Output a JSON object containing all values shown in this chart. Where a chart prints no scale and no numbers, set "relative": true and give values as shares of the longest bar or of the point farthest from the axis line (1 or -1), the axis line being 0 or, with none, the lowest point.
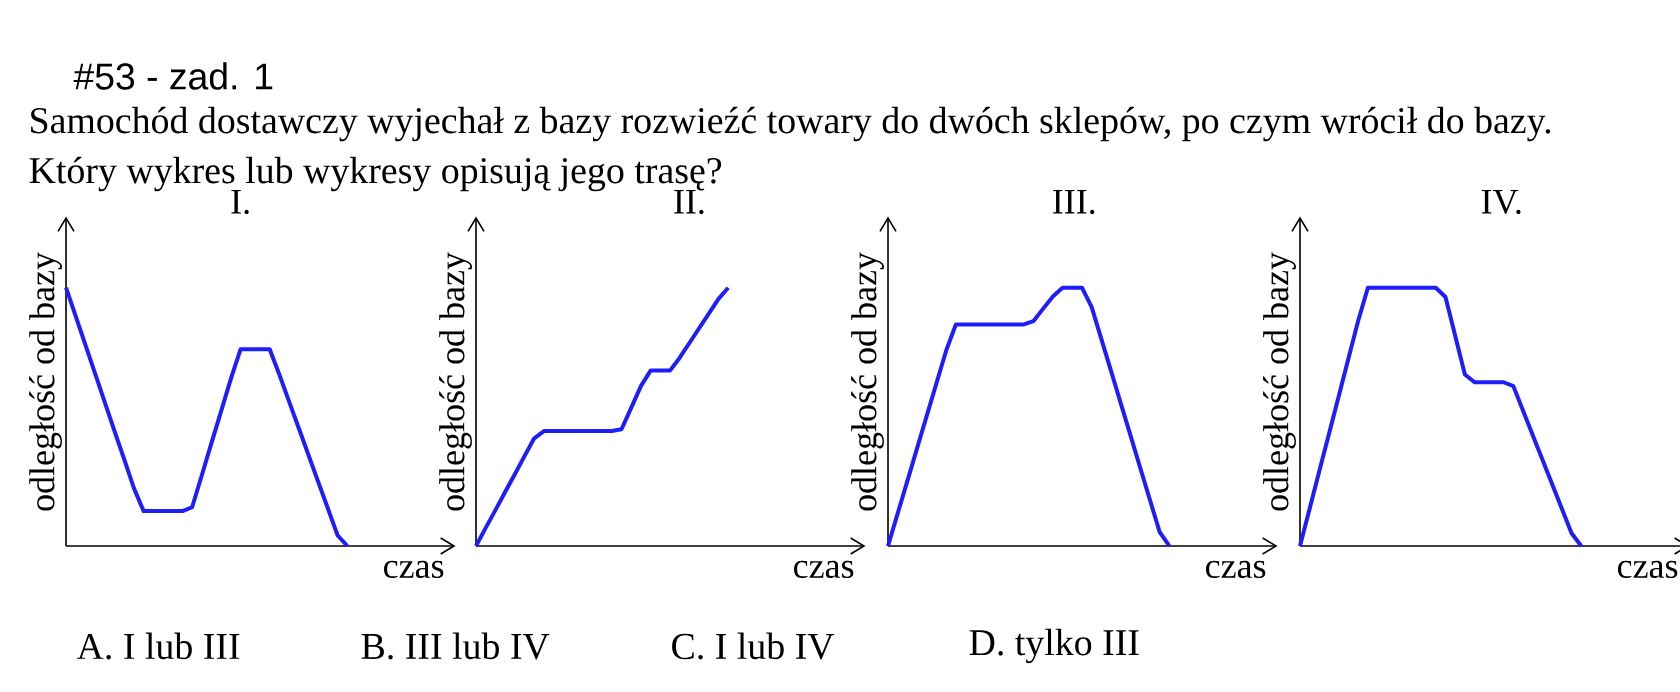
{
  "chart_data": [
    {
      "type": "other",
      "title": "#53 - zad. 1",
      "annotations": [
        "Samochód dostawczy wyjechał z bazy rozwieźć towary do dwóch sklepów, po czym wrócił do bazy.",
        "Który wykres lub wykresy opisują jego trasę?"
      ]
    },
    {
      "type": "line",
      "title": "I.",
      "xlabel": "czas",
      "ylabel": "odległość od bazy",
      "relative": true,
      "marker": "none",
      "line_style": "solid",
      "color": "#1e1efa",
      "categories": [
        null,
        null,
        null,
        null,
        null,
        null,
        null,
        null,
        null,
        null,
        null,
        null,
        null,
        null,
        null,
        null,
        null,
        null,
        null,
        null,
        null,
        null,
        null,
        null,
        null,
        null,
        null,
        null,
        null,
        null,
        null,
        null,
        null,
        null,
        null,
        null,
        null,
        null,
        null,
        null,
        null
      ],
      "values": [
        1,
        0.889,
        0.778,
        0.667,
        0.556,
        0.445,
        0.335,
        0.224,
        0.135,
        0.135,
        0.135,
        0.135,
        0.135,
        0.15,
        0.274,
        0.399,
        0.523,
        0.648,
        0.762,
        0.762,
        0.762,
        0.762,
        0.663,
        0.559,
        0.456,
        0.352,
        0.248,
        0.145,
        0.041,
        0,
        null,
        null,
        null,
        null,
        null,
        null,
        null,
        null,
        null,
        null,
        null
      ]
    },
    {
      "type": "line",
      "title": "II.",
      "xlabel": "czas",
      "ylabel": "odległość od bazy",
      "relative": true,
      "marker": "none",
      "line_style": "solid",
      "color": "#1e1efa",
      "categories": [
        null,
        null,
        null,
        null,
        null,
        null,
        null,
        null,
        null,
        null,
        null,
        null,
        null,
        null,
        null,
        null,
        null,
        null,
        null,
        null,
        null,
        null,
        null,
        null,
        null,
        null,
        null,
        null,
        null,
        null,
        null,
        null,
        null,
        null,
        null,
        null,
        null,
        null,
        null,
        null,
        null
      ],
      "values": [
        0,
        0.07,
        0.139,
        0.209,
        0.278,
        0.348,
        0.417,
        0.445,
        0.445,
        0.445,
        0.445,
        0.445,
        0.445,
        0.445,
        0.445,
        0.452,
        0.535,
        0.619,
        0.679,
        0.679,
        0.679,
        0.729,
        0.786,
        0.843,
        0.9,
        0.957,
        1,
        null,
        null,
        null,
        null,
        null,
        null,
        null,
        null,
        null,
        null,
        null,
        null,
        null,
        null
      ]
    },
    {
      "type": "line",
      "title": "III.",
      "xlabel": "czas",
      "ylabel": "odległość od bazy",
      "relative": true,
      "marker": "none",
      "line_style": "solid",
      "color": "#1e1efa",
      "categories": [
        null,
        null,
        null,
        null,
        null,
        null,
        null,
        null,
        null,
        null,
        null,
        null,
        null,
        null,
        null,
        null,
        null,
        null,
        null,
        null,
        null,
        null,
        null,
        null,
        null,
        null,
        null,
        null,
        null,
        null,
        null,
        null,
        null,
        null,
        null,
        null,
        null,
        null,
        null,
        null,
        null
      ],
      "values": [
        0,
        0.126,
        0.252,
        0.379,
        0.505,
        0.631,
        0.757,
        0.858,
        0.858,
        0.858,
        0.858,
        0.858,
        0.858,
        0.858,
        0.858,
        0.871,
        0.919,
        0.966,
        1,
        1,
        1,
        0.925,
        0.801,
        0.677,
        0.552,
        0.428,
        0.303,
        0.179,
        0.055,
        0,
        null,
        null,
        null,
        null,
        null,
        null,
        null,
        null,
        null,
        null,
        null
      ]
    },
    {
      "type": "line",
      "title": "IV.",
      "xlabel": "czas",
      "ylabel": "odległość od bazy",
      "relative": true,
      "marker": "none",
      "line_style": "solid",
      "color": "#1e1efa",
      "categories": [
        null,
        null,
        null,
        null,
        null,
        null,
        null,
        null,
        null,
        null,
        null,
        null,
        null,
        null,
        null,
        null,
        null,
        null,
        null,
        null,
        null,
        null,
        null,
        null,
        null,
        null,
        null,
        null,
        null,
        null,
        null,
        null,
        null,
        null,
        null,
        null,
        null,
        null,
        null,
        null,
        null
      ],
      "values": [
        0,
        0.145,
        0.291,
        0.436,
        0.581,
        0.727,
        0.872,
        1,
        1,
        1,
        1,
        1,
        1,
        1,
        1,
        0.964,
        0.814,
        0.664,
        0.634,
        0.634,
        0.634,
        0.634,
        0.619,
        0.524,
        0.429,
        0.334,
        0.239,
        0.144,
        0.049,
        0,
        null,
        null,
        null,
        null,
        null,
        null,
        null,
        null,
        null,
        null,
        null
      ]
    },
    {
      "type": "other",
      "annotations": [
        "A. I lub III",
        "B.  III lub IV",
        "C.  I lub IV",
        "D.  tylko III"
      ]
    }
  ]
}
